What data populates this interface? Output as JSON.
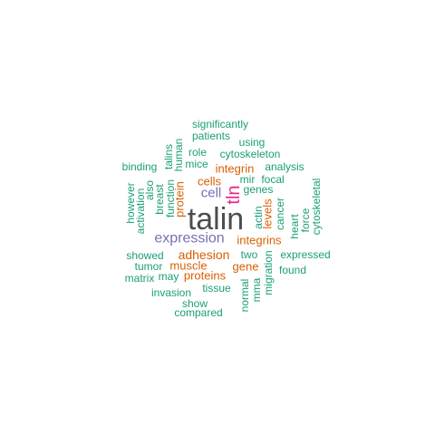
{
  "palette": {
    "dark": "#4d4d4d",
    "magenta": "#e7298a",
    "purple": "#7570b3",
    "orange": "#d95f02",
    "teal": "#1b9e77"
  },
  "words": [
    {
      "text": "talin",
      "color": "dark"
    },
    {
      "text": "tln",
      "color": "magenta"
    },
    {
      "text": "expression",
      "color": "purple"
    },
    {
      "text": "cell",
      "color": "purple"
    },
    {
      "text": "adhesion",
      "color": "orange"
    },
    {
      "text": "integrins",
      "color": "orange"
    },
    {
      "text": "integrin",
      "color": "orange"
    },
    {
      "text": "cells",
      "color": "orange"
    },
    {
      "text": "protein",
      "color": "orange"
    },
    {
      "text": "levels",
      "color": "orange"
    },
    {
      "text": "muscle",
      "color": "orange"
    },
    {
      "text": "proteins",
      "color": "orange"
    },
    {
      "text": "gene",
      "color": "orange"
    },
    {
      "text": "significantly",
      "color": "teal"
    },
    {
      "text": "patients",
      "color": "teal"
    },
    {
      "text": "using",
      "color": "teal"
    },
    {
      "text": "role",
      "color": "teal"
    },
    {
      "text": "cytoskeleton",
      "color": "teal"
    },
    {
      "text": "binding",
      "color": "teal"
    },
    {
      "text": "talins",
      "color": "teal"
    },
    {
      "text": "human",
      "color": "teal"
    },
    {
      "text": "mice",
      "color": "teal"
    },
    {
      "text": "analysis",
      "color": "teal"
    },
    {
      "text": "focal",
      "color": "teal"
    },
    {
      "text": "mir",
      "color": "teal"
    },
    {
      "text": "genes",
      "color": "teal"
    },
    {
      "text": "however",
      "color": "teal"
    },
    {
      "text": "activation",
      "color": "teal"
    },
    {
      "text": "also",
      "color": "teal"
    },
    {
      "text": "breast",
      "color": "teal"
    },
    {
      "text": "function",
      "color": "teal"
    },
    {
      "text": "actin",
      "color": "teal"
    },
    {
      "text": "cancer",
      "color": "teal"
    },
    {
      "text": "heart",
      "color": "teal"
    },
    {
      "text": "force",
      "color": "teal"
    },
    {
      "text": "cytoskeletal",
      "color": "teal"
    },
    {
      "text": "showed",
      "color": "teal"
    },
    {
      "text": "two",
      "color": "teal"
    },
    {
      "text": "expressed",
      "color": "teal"
    },
    {
      "text": "tumor",
      "color": "teal"
    },
    {
      "text": "found",
      "color": "teal"
    },
    {
      "text": "matrix",
      "color": "teal"
    },
    {
      "text": "may",
      "color": "teal"
    },
    {
      "text": "migration",
      "color": "teal"
    },
    {
      "text": "tissue",
      "color": "teal"
    },
    {
      "text": "mma",
      "color": "teal"
    },
    {
      "text": "normal",
      "color": "teal"
    },
    {
      "text": "invasion",
      "color": "teal"
    },
    {
      "text": "show",
      "color": "teal"
    },
    {
      "text": "compared",
      "color": "teal"
    }
  ]
}
